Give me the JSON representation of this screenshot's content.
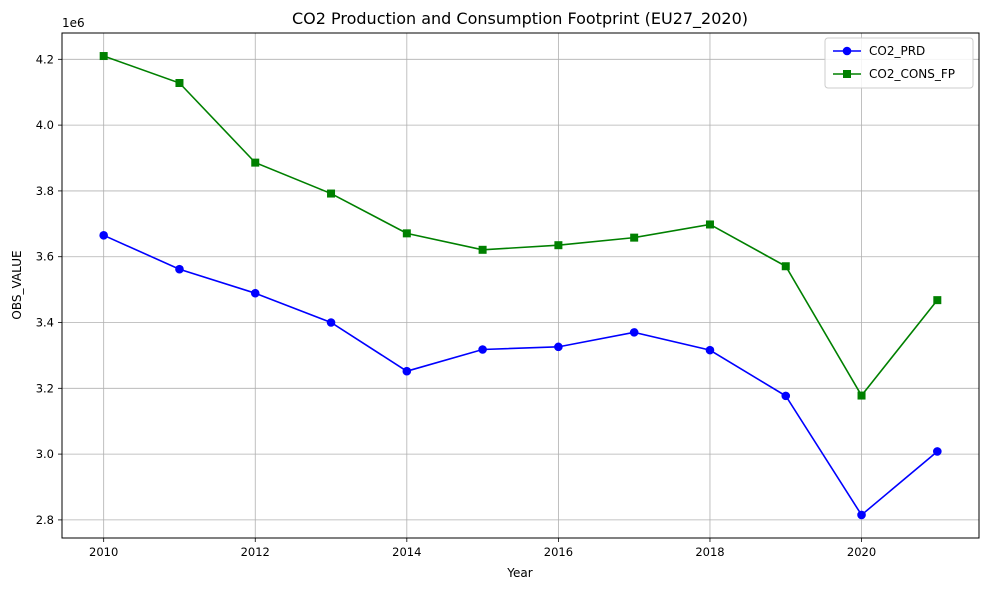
{
  "chart_data": {
    "type": "line",
    "title": "CO2 Production and Consumption Footprint (EU27_2020)",
    "xlabel": "Year",
    "ylabel": "OBS_VALUE",
    "y_offset_label": "1e6",
    "x": [
      2010,
      2011,
      2012,
      2013,
      2014,
      2015,
      2016,
      2017,
      2018,
      2019,
      2020,
      2021
    ],
    "xlim": [
      2009.45,
      2021.55
    ],
    "ylim": [
      2.745,
      4.28
    ],
    "x_ticks": [
      2010,
      2012,
      2014,
      2016,
      2018,
      2020
    ],
    "y_ticks": [
      2.8,
      3.0,
      3.2,
      3.4,
      3.6,
      3.8,
      4.0,
      4.2
    ],
    "y_tick_labels": [
      "2.8",
      "3.0",
      "3.2",
      "3.4",
      "3.6",
      "3.8",
      "4.0",
      "4.2"
    ],
    "grid": true,
    "legend_position": "top-right",
    "series": [
      {
        "name": "CO2_PRD",
        "color": "#0000ff",
        "marker": "circle",
        "values": [
          3.665,
          3.562,
          3.489,
          3.4,
          3.252,
          3.318,
          3.326,
          3.37,
          3.316,
          3.177,
          2.815,
          3.008
        ]
      },
      {
        "name": "CO2_CONS_FP",
        "color": "#008000",
        "marker": "square",
        "values": [
          4.21,
          4.128,
          3.886,
          3.792,
          3.671,
          3.621,
          3.635,
          3.658,
          3.698,
          3.571,
          3.178,
          3.468
        ]
      }
    ]
  }
}
